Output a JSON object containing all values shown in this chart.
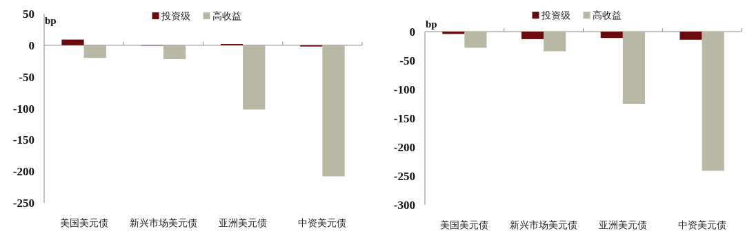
{
  "chart_data": [
    {
      "type": "bar",
      "ylabel": "bp",
      "categories": [
        "美国美元债",
        "新兴市场美元债",
        "亚洲美元债",
        "中资美元债"
      ],
      "series": [
        {
          "name": "投资级",
          "color": "#6b0a0a",
          "values": [
            9,
            0,
            2,
            -2
          ]
        },
        {
          "name": "高收益",
          "color": "#b8b8a4",
          "values": [
            -20,
            -22,
            -102,
            -208
          ]
        }
      ],
      "ylim": [
        -250,
        50
      ],
      "yticks": [
        50,
        0,
        -50,
        -100,
        -150,
        -200,
        -250
      ],
      "legend": "top"
    },
    {
      "type": "bar",
      "ylabel": "bp",
      "categories": [
        "美国美元债",
        "新兴市场美元债",
        "亚洲美元债",
        "中资美元债"
      ],
      "series": [
        {
          "name": "投资级",
          "color": "#6b0a0a",
          "values": [
            -4,
            -13,
            -11,
            -14
          ]
        },
        {
          "name": "高收益",
          "color": "#b8b8a4",
          "values": [
            -28,
            -34,
            -125,
            -241
          ]
        }
      ],
      "ylim": [
        -300,
        0
      ],
      "yticks": [
        0,
        -50,
        -100,
        -150,
        -200,
        -250,
        -300
      ],
      "legend": "top"
    }
  ]
}
